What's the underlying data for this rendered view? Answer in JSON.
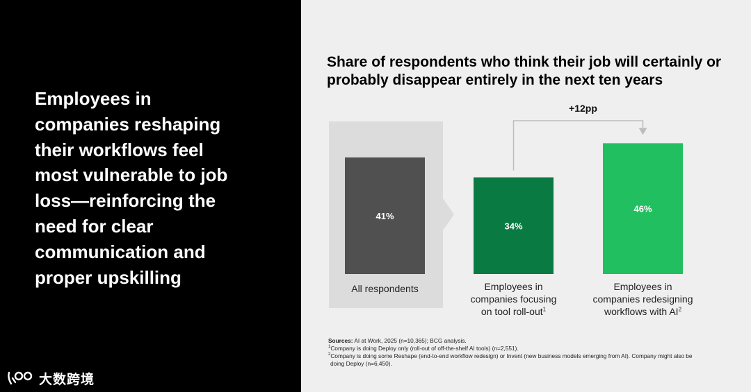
{
  "headline": "Employees in companies reshaping their workflows feel most vulnerable to job loss—reinforcing the need for clear communication and proper upskilling",
  "logo_text": "大数跨境",
  "chart_data": {
    "type": "bar",
    "title": "Share of respondents who think their job will certainly or probably disappear entirely in the next ten years",
    "categories": [
      "All respondents",
      "Employees in companies focusing on tool roll-out",
      "Employees in companies redesigning workflows with AI"
    ],
    "values": [
      41,
      34,
      46
    ],
    "value_labels": [
      "41%",
      "34%",
      "46%"
    ],
    "category_lines": [
      [
        "All respondents"
      ],
      [
        "Employees in",
        "companies focusing",
        "on tool roll-out"
      ],
      [
        "Employees in",
        "companies redesigning",
        "workflows with AI"
      ]
    ],
    "category_notes": [
      "",
      "1",
      "2"
    ],
    "colors": [
      "#505050",
      "#0a7a43",
      "#21bf60"
    ],
    "highlight_box_color": "#dcdcdc",
    "annotation": "+12pp",
    "ylim": [
      0,
      50
    ]
  },
  "sources": {
    "label": "Sources:",
    "text": "AI at Work, 2025 (n=10,365); BCG analysis.",
    "notes": [
      {
        "mark": "1",
        "text": "Company is doing Deploy only (roll-out of off-the-shelf AI tools) (n=2,551)."
      },
      {
        "mark": "2",
        "text": "Company is doing some Reshape (end-to-end workflow redesign) or Invent (new business models emerging from AI). Company might also be"
      },
      {
        "mark": "",
        "text": "doing Deploy (n=6,450)."
      }
    ]
  }
}
